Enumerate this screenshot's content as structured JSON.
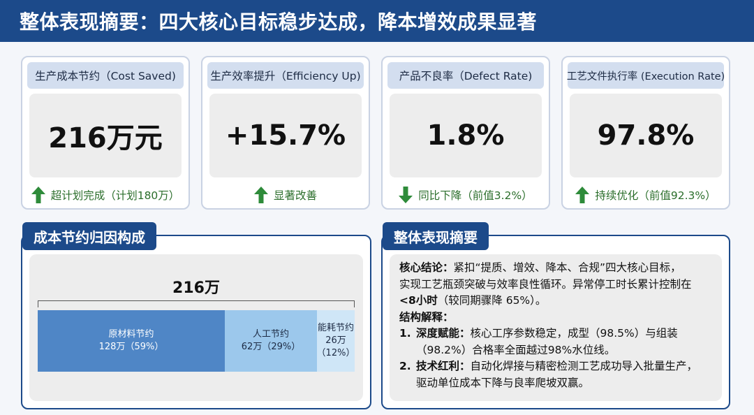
{
  "header": {
    "title": "整体表现摘要：四大核心目标稳步达成，降本增效成果显著"
  },
  "kpis": [
    {
      "label": "生产成本节约（Cost Saved)",
      "value": "216万元",
      "note": "超计划完成（计划180万）",
      "trend": "up",
      "trend_color": "#2e8b3a"
    },
    {
      "label": "生产效率提升（Efficiency Up)",
      "value": "+15.7%",
      "note": "显著改善",
      "trend": "up",
      "trend_color": "#2e8b3a"
    },
    {
      "label": "产品不良率（Defect Rate)",
      "value": "1.8%",
      "note": "同比下降（前值3.2%）",
      "trend": "down",
      "trend_color": "#2e8b3a"
    },
    {
      "label": "工艺文件执行率 (Execution Rate)",
      "value": "97.8%",
      "note": "持续优化（前值92.3%）",
      "trend": "up",
      "trend_color": "#2e8b3a"
    }
  ],
  "cost_panel": {
    "title": "成本节约归因构成",
    "total": "216万",
    "segments": [
      {
        "name": "原材料节约",
        "detail": "128万（59%）",
        "share": 0.59,
        "color": "#4f86c6",
        "text_color": "#ffffff"
      },
      {
        "name": "人工节约",
        "detail": "62万（29%）",
        "share": 0.29,
        "color": "#9cc8ec",
        "text_color": "#1d2b44"
      },
      {
        "name": "能耗节约",
        "detail": "26万",
        "detail2": "（12%）",
        "share": 0.12,
        "color": "#cfe6f7",
        "text_color": "#1d2b44"
      }
    ]
  },
  "summary_panel": {
    "title": "整体表现摘要",
    "core_label": "核心结论：",
    "core_text1": "紧扣“提质、增效、降本、合规”四大核心目标，",
    "core_text2": "实现工艺瓶颈突破与效率良性循环。异常停工时长累计控制在",
    "core_bold": "<8小时",
    "core_text3": "（较同期骤降 65%）。",
    "structure_label": "结构解释：",
    "items": [
      {
        "num": "1.",
        "label": "深度赋能：",
        "text1": "核心工序参数稳定，成型（98.5%）与组装",
        "text2": "（98.2%）合格率全面越过98%水位线。"
      },
      {
        "num": "2.",
        "label": "技术红利：",
        "text1": "自动化焊接与精密检测工艺成功导入批量生产，",
        "text2": "驱动单位成本下降与良率爬坡双赢。"
      }
    ]
  },
  "colors": {
    "brand": "#1c4a8a",
    "up_arrow": "#2e8b3a"
  }
}
